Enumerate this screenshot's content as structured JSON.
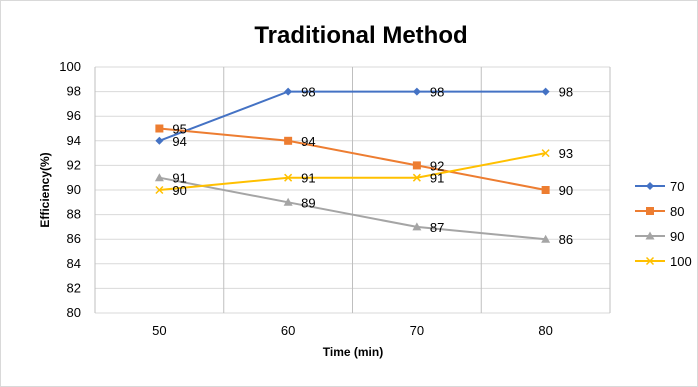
{
  "chart_data": {
    "type": "line",
    "title": "Traditional  Method",
    "xlabel": "Time (min)",
    "ylabel": "Efficiency(%)",
    "categories": [
      "50",
      "60",
      "70",
      "80"
    ],
    "ylim": [
      80,
      100
    ],
    "yticks": [
      "80",
      "82",
      "84",
      "86",
      "88",
      "90",
      "92",
      "94",
      "96",
      "98",
      "100"
    ],
    "grid": true,
    "legend_position": "right",
    "series": [
      {
        "name": "70",
        "values": [
          94,
          98,
          98,
          98
        ],
        "color": "#4472c4",
        "marker": "diamond"
      },
      {
        "name": "80",
        "values": [
          95,
          94,
          92,
          90
        ],
        "color": "#ed7d31",
        "marker": "square"
      },
      {
        "name": "90",
        "values": [
          91,
          89,
          87,
          86
        ],
        "color": "#a5a5a5",
        "marker": "triangle"
      },
      {
        "name": "100",
        "values": [
          90,
          91,
          91,
          93
        ],
        "color": "#ffc000",
        "marker": "x"
      }
    ]
  }
}
